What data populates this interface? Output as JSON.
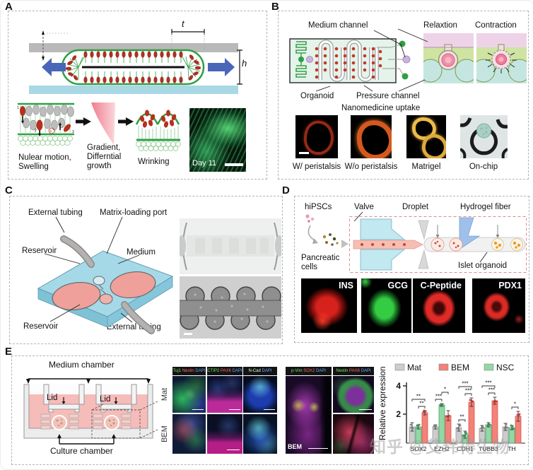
{
  "watermark": "知乎 @艾玮得生物",
  "panels": {
    "A": {
      "label": "A",
      "dim_t": "t",
      "dim_h": "h",
      "marks": [
        "1",
        "2",
        "3",
        "II"
      ],
      "step1_l1": "Nulear motion,",
      "step1_l2": "Swelling",
      "step2_l1": "Gradient,",
      "step2_l2": "Differntial",
      "step2_l3": "growth",
      "step3": "Wrinking",
      "day_label": "Day 11"
    },
    "B": {
      "label": "B",
      "medium_channel": "Medium channel",
      "relaxation": "Relaxtion",
      "contraction": "Contraction",
      "organoid": "Organoid",
      "pressure_channel": "Pressure channel",
      "nanomedicine": "Nanomedicine uptake",
      "captions": [
        "W/ peristalsis",
        "W/o peristalsis",
        "Matrigel",
        "On-chip"
      ]
    },
    "C": {
      "label": "C",
      "external_tubing_top": "External tubing",
      "matrix_loading_port": "Matrix-loading port",
      "reservoir_top": "Reservoir",
      "medium": "Medium",
      "reservoir_bottom": "Reservoir",
      "external_tubing_bottom": "External tubing"
    },
    "D": {
      "label": "D",
      "hipscs": "hiPSCs",
      "valve": "Valve",
      "droplet": "Droplet",
      "hydrogel_fiber": "Hydrogel fiber",
      "pancreatic_l1": "Pancreatic",
      "pancreatic_l2": "cells",
      "islet_organoid": "Islet organoid",
      "markers": [
        "INS",
        "GCG",
        "C-Peptide",
        "PDX1"
      ]
    },
    "E": {
      "label": "E",
      "medium_chamber": "Medium chamber",
      "lid": "Lid",
      "culture_chamber": "Culture chamber",
      "row_labels": [
        "Mat",
        "BEM"
      ],
      "bem_inset": "BEM",
      "image_headers": [
        [
          {
            "text": "Tuj1",
            "color": "#7ce26a"
          },
          {
            "text": "Nestin",
            "color": "#ff6a6a"
          },
          {
            "text": "DAPI",
            "color": "#6aa8ff"
          }
        ],
        [
          {
            "text": "CTIP2",
            "color": "#7ce26a"
          },
          {
            "text": "PAX6",
            "color": "#ff6a6a"
          },
          {
            "text": "DAPI",
            "color": "#6aa8ff"
          }
        ],
        [
          {
            "text": "N-Cad",
            "color": "#d8ffd8"
          },
          {
            "text": "DAPI",
            "color": "#6aa8ff"
          }
        ],
        [
          {
            "text": "p-Vim",
            "color": "#7ce26a"
          },
          {
            "text": "SOX2",
            "color": "#ff6a6a"
          },
          {
            "text": "DAPI",
            "color": "#6aa8ff"
          }
        ],
        [
          {
            "text": "Nestin",
            "color": "#7ce26a"
          },
          {
            "text": "PAX6",
            "color": "#ff6a6a"
          },
          {
            "text": "DAPI",
            "color": "#6aa8ff"
          }
        ]
      ],
      "chart_data": {
        "type": "bar",
        "title": "",
        "xlabel": "",
        "ylabel": "Relative expression",
        "ylim": [
          0,
          4
        ],
        "yticks": [
          2,
          4
        ],
        "grid": false,
        "legend_position": "top",
        "legend": [
          "Mat",
          "BEM",
          "NSC"
        ],
        "categories": [
          "SOX2",
          "EZH2",
          "CDH1",
          "TUBB3",
          "TH"
        ],
        "series": [
          {
            "name": "Mat",
            "color": "#cccccc",
            "stroke": "#9a9a9a",
            "dot": "#777777",
            "values": [
              1.1,
              1.1,
              1.05,
              1.0,
              1.1
            ],
            "errors": [
              0.3,
              0.15,
              0.25,
              0.2,
              0.25
            ]
          },
          {
            "name": "NSC",
            "color": "#93d8a4",
            "stroke": "#46a36a",
            "dot": "#2e8a50",
            "values": [
              1.1,
              2.65,
              0.55,
              1.25,
              1.05
            ],
            "errors": [
              0.15,
              0.1,
              0.25,
              0.15,
              0.15
            ]
          },
          {
            "name": "BEM",
            "color": "#f2827a",
            "stroke": "#d9574b",
            "dot": "#c03028",
            "values": [
              2.1,
              1.9,
              2.85,
              2.95,
              1.85
            ],
            "errors": [
              0.15,
              0.35,
              0.3,
              0.25,
              0.35
            ]
          }
        ],
        "significance": [
          {
            "group": 0,
            "pairs": [
              {
                "a": 1,
                "b": 2,
                "label": "**"
              },
              {
                "a": 0,
                "b": 2,
                "label": "**"
              }
            ]
          },
          {
            "group": 1,
            "pairs": [
              {
                "a": 0,
                "b": 1,
                "label": "***"
              },
              {
                "a": 1,
                "b": 2,
                "label": "*"
              }
            ]
          },
          {
            "group": 2,
            "pairs": [
              {
                "a": 0,
                "b": 1,
                "label": "**"
              },
              {
                "a": 1,
                "b": 2,
                "label": "***"
              },
              {
                "a": 0,
                "b": 2,
                "label": "***"
              }
            ]
          },
          {
            "group": 3,
            "pairs": [
              {
                "a": 1,
                "b": 2,
                "label": "***"
              },
              {
                "a": 0,
                "b": 2,
                "label": "***"
              }
            ]
          },
          {
            "group": 4,
            "pairs": [
              {
                "a": 1,
                "b": 2,
                "label": "*"
              }
            ]
          }
        ]
      }
    }
  }
}
